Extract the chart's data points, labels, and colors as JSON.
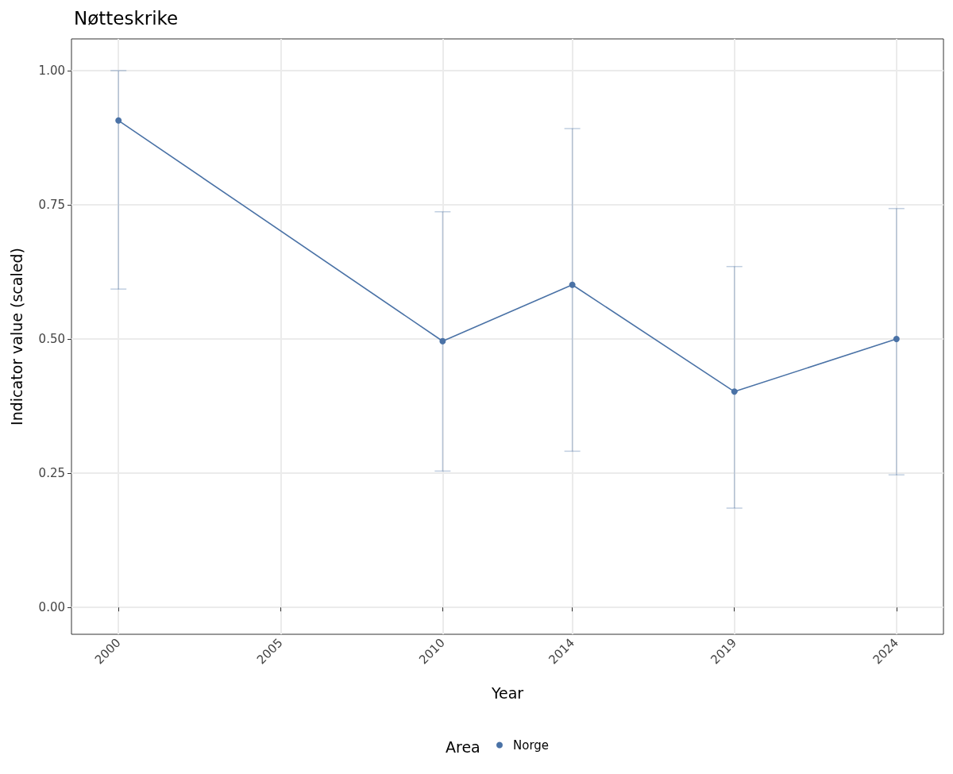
{
  "chart_data": {
    "type": "line",
    "title": "Nøtteskrike",
    "xlabel": "Year",
    "ylabel": "Indicator value (scaled)",
    "legend_title": "Area",
    "x": [
      2000,
      2010,
      2014,
      2019,
      2024
    ],
    "series": [
      {
        "name": "Norge",
        "color": "#4a72a6",
        "values": [
          0.907,
          0.496,
          0.601,
          0.402,
          0.5
        ],
        "errors": [
          [
            0.593,
            1.0
          ],
          [
            0.254,
            0.737
          ],
          [
            0.291,
            0.892
          ],
          [
            0.185,
            0.635
          ],
          [
            0.247,
            0.743
          ]
        ]
      }
    ],
    "xlim": [
      1998.55,
      2025.45
    ],
    "xticks": [
      2000,
      2005,
      2010,
      2014,
      2019,
      2024
    ],
    "ylim": [
      -0.05,
      1.059
    ],
    "yticks": [
      {
        "value": 0,
        "label": "0.00"
      },
      {
        "value": 0.25,
        "label": "0.25"
      },
      {
        "value": 0.5,
        "label": "0.50"
      },
      {
        "value": 0.75,
        "label": "0.75"
      },
      {
        "value": 1,
        "label": "1.00"
      }
    ],
    "grid": true,
    "legend": "bottom",
    "marker": "circle",
    "line_style": "solid"
  }
}
